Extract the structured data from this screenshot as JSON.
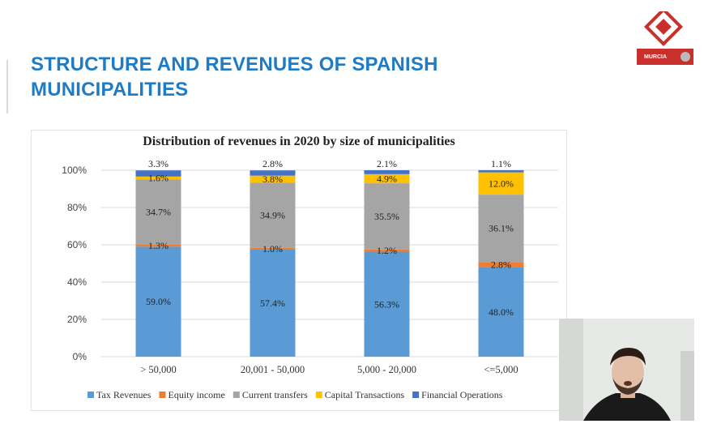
{
  "slide": {
    "title": "STRUCTURE AND REVENUES OF SPANISH MUNICIPALITIES",
    "logo_text": "MURCIA"
  },
  "colors": {
    "title": "#1f7bc4",
    "tax_revenues": "#5b9bd5",
    "equity_income": "#ed7d31",
    "current_transfers": "#a5a5a5",
    "capital_transactions": "#ffc000",
    "financial_operations": "#4472c4"
  },
  "chart_data": {
    "type": "bar",
    "stacked": true,
    "title": "Distribution of revenues in 2020 by size of municipalities",
    "categories": [
      "> 50,000",
      "20,001 - 50,000",
      "5,000 - 20,000",
      "<=5,000"
    ],
    "ylim": [
      0,
      100
    ],
    "yticks": [
      "0%",
      "20%",
      "40%",
      "60%",
      "80%",
      "100%"
    ],
    "grid": true,
    "legend_position": "bottom",
    "series": [
      {
        "name": "Tax Revenues",
        "color": "#5b9bd5",
        "values": [
          59.0,
          57.4,
          56.3,
          48.0
        ],
        "labels": [
          "59.0%",
          "57.4%",
          "56.3%",
          "48.0%"
        ]
      },
      {
        "name": "Equity income",
        "color": "#ed7d31",
        "values": [
          1.3,
          1.0,
          1.2,
          2.8
        ],
        "labels": [
          "1.3%",
          "1.0%",
          "1.2%",
          "2.8%"
        ]
      },
      {
        "name": "Current transfers",
        "color": "#a5a5a5",
        "values": [
          34.7,
          34.9,
          35.5,
          36.1
        ],
        "labels": [
          "34.7%",
          "34.9%",
          "35.5%",
          "36.1%"
        ]
      },
      {
        "name": "Capital Transactions",
        "color": "#ffc000",
        "values": [
          1.6,
          3.8,
          4.9,
          12.0
        ],
        "labels": [
          "1.6%",
          "3.8%",
          "4.9%",
          "12.0%"
        ]
      },
      {
        "name": "Financial Operations",
        "color": "#4472c4",
        "values": [
          3.3,
          2.8,
          2.1,
          1.1
        ],
        "labels": [
          "3.3%",
          "2.8%",
          "2.1%",
          "1.1%"
        ]
      }
    ]
  }
}
